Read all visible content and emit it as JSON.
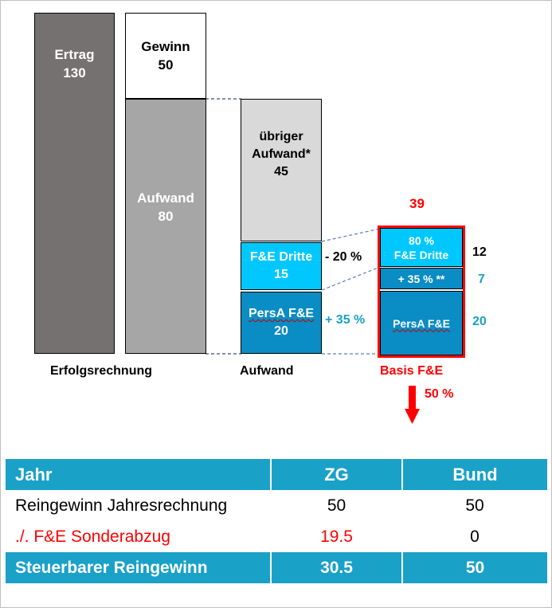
{
  "diagram": {
    "ertrag": {
      "label": "Ertrag",
      "value": "130"
    },
    "gewinn": {
      "label": "Gewinn",
      "value": "50"
    },
    "aufwand": {
      "label": "Aufwand",
      "value": "80"
    },
    "uebriger": {
      "line1": "übriger",
      "line2": "Aufwand*",
      "value": "45"
    },
    "fe_dritte": {
      "label": "F&E Dritte",
      "value": "15",
      "adjust": "- 20 %"
    },
    "persa": {
      "label": "PersA F&E",
      "value": "20",
      "adjust": "+ 35 %"
    },
    "basis": {
      "total": "39",
      "top_line1": "80 %",
      "top_line2": "F&E Dritte",
      "top_value": "12",
      "mid_label": "+ 35 % **",
      "mid_value": "7",
      "bottom_label": "PersA F&E",
      "bottom_value": "20"
    },
    "labels": {
      "erfolgsrechnung": "Erfolgsrechnung",
      "aufwand": "Aufwand",
      "basis": "Basis F&E",
      "percent": "50 %"
    },
    "colors": {
      "ertrag": "#767171",
      "aufwand": "#a6a6a6",
      "uebriger": "#d9d9d9",
      "fe_dritte": "#00c8ff",
      "persa": "#0a8cc4",
      "accent_red": "#ff0000",
      "teal": "#1aa1c7"
    }
  },
  "table": {
    "headers": [
      "Jahr",
      "ZG",
      "Bund"
    ],
    "rows": [
      {
        "label": "Reingewinn Jahresrechnung",
        "zg": "50",
        "bund": "50"
      },
      {
        "label": "./. F&E Sonderabzug",
        "zg": "19.5",
        "bund": "0"
      }
    ],
    "total": {
      "label": "Steuerbarer Reingewinn",
      "zg": "30.5",
      "bund": "50"
    }
  }
}
